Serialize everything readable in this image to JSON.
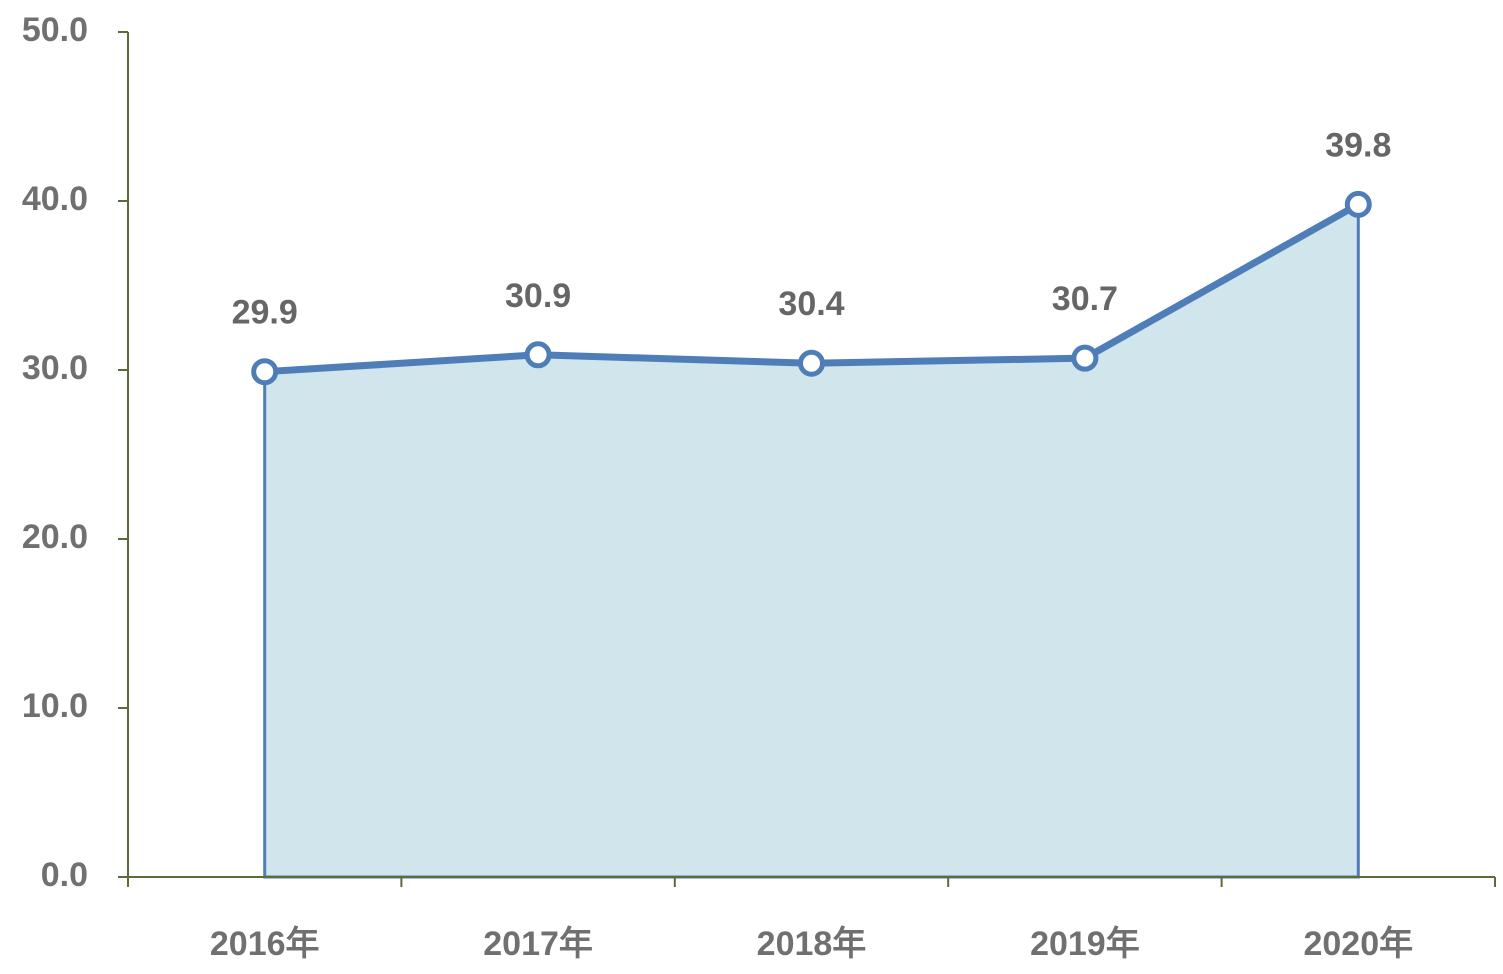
{
  "chart_data": {
    "type": "area",
    "categories": [
      "2016年",
      "2017年",
      "2018年",
      "2019年",
      "2020年"
    ],
    "values": [
      29.9,
      30.9,
      30.4,
      30.7,
      39.8
    ],
    "color": "#4f7db8",
    "fill": "#d0e5ec",
    "axis_color": "#5b6b3a",
    "ylim": [
      0,
      50
    ],
    "yticks": [
      {
        "value": 0,
        "label": "0.0"
      },
      {
        "value": 10,
        "label": "10.0"
      },
      {
        "value": 20,
        "label": "20.0"
      },
      {
        "value": 30,
        "label": "30.0"
      },
      {
        "value": 40,
        "label": "40.0"
      },
      {
        "value": 50,
        "label": "50.0"
      }
    ]
  }
}
